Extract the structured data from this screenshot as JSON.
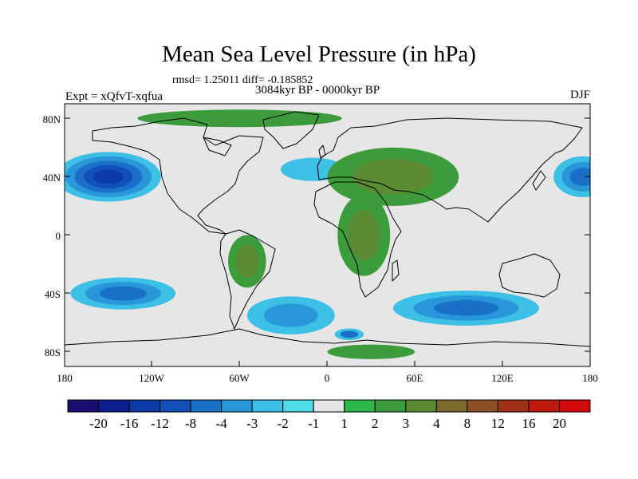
{
  "title": "Mean Sea Level Pressure (in hPa)",
  "stats": "rmsd= 1.25011 diff= -0.185852",
  "period": "3084kyr BP - 0000kyr BP",
  "experiment": "Expt = xQfvT-xqfua",
  "season": "DJF",
  "axes": {
    "lat_labels": [
      "80N",
      "40N",
      "0",
      "40S",
      "80S"
    ],
    "lon_labels": [
      "180",
      "120W",
      "60W",
      "0",
      "60E",
      "120E",
      "180"
    ]
  },
  "colorbar": {
    "labels": [
      "-20",
      "-16",
      "-12",
      "-8",
      "-4",
      "-3",
      "-2",
      "-1",
      "1",
      "2",
      "3",
      "4",
      "8",
      "12",
      "16",
      "20"
    ],
    "colors": [
      "#1a0f6e",
      "#0a1e92",
      "#0e3aa8",
      "#1150b8",
      "#1a70c8",
      "#2896d8",
      "#3cc0e6",
      "#4edce8",
      "#e6e6e6",
      "#2eb84a",
      "#3c9c3c",
      "#5a8a32",
      "#7a6a2c",
      "#8c5024",
      "#a03018",
      "#c01a10",
      "#d20a0a"
    ]
  },
  "map_data": {
    "lat_range": [
      -90,
      90
    ],
    "lon_range": [
      -180,
      180
    ],
    "anomaly_regions": [
      {
        "name": "north-pacific-low",
        "lon": -150,
        "lat": 40,
        "rlon": 36,
        "rlat": 17,
        "levels": [
          "-2",
          "-3",
          "-4",
          "-8",
          "-12"
        ]
      },
      {
        "name": "west-pacific-low",
        "lon": 175,
        "lat": 40,
        "rlon": 20,
        "rlat": 14,
        "levels": [
          "-2",
          "-3",
          "-4"
        ]
      },
      {
        "name": "north-atlantic-low",
        "lon": -10,
        "lat": 45,
        "rlon": 22,
        "rlat": 8,
        "levels": [
          "-2"
        ]
      },
      {
        "name": "south-pacific-low",
        "lon": -140,
        "lat": -40,
        "rlon": 36,
        "rlat": 11,
        "levels": [
          "-2",
          "-3",
          "-4"
        ]
      },
      {
        "name": "south-atlantic-low",
        "lon": -25,
        "lat": -55,
        "rlon": 30,
        "rlat": 13,
        "levels": [
          "-2",
          "-3"
        ]
      },
      {
        "name": "indian-ocean-low",
        "lon": 95,
        "lat": -50,
        "rlon": 50,
        "rlat": 12,
        "levels": [
          "-2",
          "-3",
          "-4"
        ]
      },
      {
        "name": "antarctic-coast-low",
        "lon": 15,
        "lat": -68,
        "rlon": 10,
        "rlat": 4,
        "levels": [
          "-2",
          "-4"
        ]
      },
      {
        "name": "eurasia-high",
        "lon": 45,
        "lat": 40,
        "rlon": 45,
        "rlat": 20,
        "levels": [
          "2",
          "3"
        ]
      },
      {
        "name": "arctic-high",
        "lon": -60,
        "lat": 80,
        "rlon": 70,
        "rlat": 6,
        "levels": [
          "2"
        ]
      },
      {
        "name": "africa-high",
        "lon": 25,
        "lat": 0,
        "rlon": 18,
        "rlat": 28,
        "levels": [
          "2",
          "3"
        ]
      },
      {
        "name": "south-america-high",
        "lon": -55,
        "lat": -18,
        "rlon": 13,
        "rlat": 18,
        "levels": [
          "2",
          "3"
        ]
      },
      {
        "name": "antarctica-high",
        "lon": 30,
        "lat": -80,
        "rlon": 30,
        "rlat": 5,
        "levels": [
          "2"
        ]
      }
    ]
  }
}
